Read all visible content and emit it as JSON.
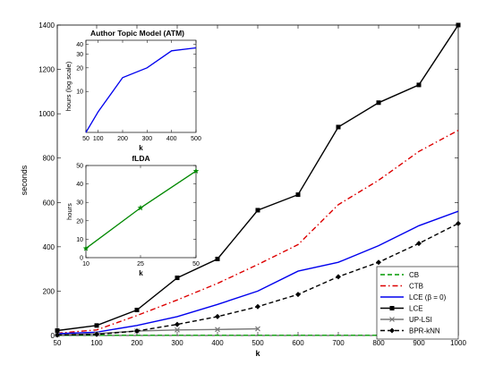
{
  "chart_data": [
    {
      "type": "line",
      "title": "",
      "xlabel": "k",
      "ylabel": "seconds",
      "xlim": [
        50,
        1000
      ],
      "ylim": [
        0,
        1400
      ],
      "xticks": [
        50,
        100,
        200,
        300,
        400,
        500,
        600,
        700,
        800,
        900,
        1000
      ],
      "yticks": [
        0,
        200,
        400,
        600,
        800,
        1000,
        1200,
        1400
      ],
      "grid": false,
      "legend_position": "bottom-right",
      "series": [
        {
          "name": "CB",
          "color": "#009900",
          "dash": "dashed",
          "marker": "none",
          "x": [
            50,
            100,
            200,
            300,
            400,
            500,
            600,
            700,
            800,
            900,
            1000
          ],
          "y": [
            1,
            1,
            1,
            1,
            1,
            1,
            1,
            1,
            1,
            1,
            1
          ]
        },
        {
          "name": "CTB",
          "color": "#dd0000",
          "dash": "dashdot",
          "marker": "none",
          "x": [
            50,
            100,
            200,
            300,
            400,
            500,
            600,
            700,
            800,
            900,
            1000
          ],
          "y": [
            10,
            25,
            90,
            160,
            235,
            320,
            410,
            590,
            700,
            830,
            925
          ]
        },
        {
          "name": "LCE (β = 0)",
          "color": "#0000ee",
          "dash": "solid",
          "marker": "none",
          "x": [
            50,
            100,
            200,
            300,
            400,
            500,
            600,
            700,
            800,
            900,
            1000
          ],
          "y": [
            8,
            15,
            45,
            85,
            140,
            200,
            290,
            330,
            405,
            495,
            560
          ]
        },
        {
          "name": "LCE",
          "color": "#000000",
          "dash": "solid",
          "marker": "square",
          "x": [
            50,
            100,
            200,
            300,
            400,
            500,
            600,
            700,
            800,
            900,
            1000
          ],
          "y": [
            22,
            45,
            115,
            260,
            345,
            565,
            635,
            940,
            1050,
            1130,
            1400
          ]
        },
        {
          "name": "UP-LSI",
          "color": "#777777",
          "dash": "solid",
          "marker": "x",
          "x": [
            50,
            100,
            200,
            300,
            400,
            500
          ],
          "y": [
            3,
            8,
            20,
            25,
            27,
            30
          ]
        },
        {
          "name": "BPR-kNN",
          "color": "#000000",
          "dash": "dashed",
          "marker": "diamond",
          "x": [
            50,
            100,
            200,
            300,
            400,
            500,
            600,
            700,
            800,
            900,
            1000
          ],
          "y": [
            2,
            5,
            20,
            50,
            85,
            130,
            185,
            265,
            330,
            415,
            505
          ]
        }
      ]
    },
    {
      "type": "line",
      "title": "Author Topic Model (ATM)",
      "xlabel": "k",
      "ylabel": "hours (log scale)",
      "xlim": [
        50,
        500
      ],
      "ylim": [
        3,
        45
      ],
      "yscale": "log",
      "xticks": [
        50,
        100,
        200,
        300,
        400,
        500
      ],
      "yticks": [
        10,
        20,
        30,
        40
      ],
      "series": [
        {
          "color": "#0000ee",
          "x": [
            50,
            100,
            200,
            300,
            400,
            500
          ],
          "y": [
            3,
            5.5,
            15,
            20,
            33,
            36
          ]
        }
      ]
    },
    {
      "type": "line",
      "title": "fLDA",
      "xlabel": "k",
      "ylabel": "hours",
      "xlim": [
        10,
        50
      ],
      "ylim": [
        0,
        50
      ],
      "xticks": [
        10,
        25,
        50
      ],
      "xticklabels": [
        "10",
        "25",
        "50"
      ],
      "yticks": [
        0,
        10,
        20,
        30,
        40,
        50
      ],
      "series": [
        {
          "color": "#008800",
          "marker": "star",
          "x": [
            10,
            25,
            50
          ],
          "y": [
            5,
            27,
            47
          ]
        }
      ]
    }
  ]
}
